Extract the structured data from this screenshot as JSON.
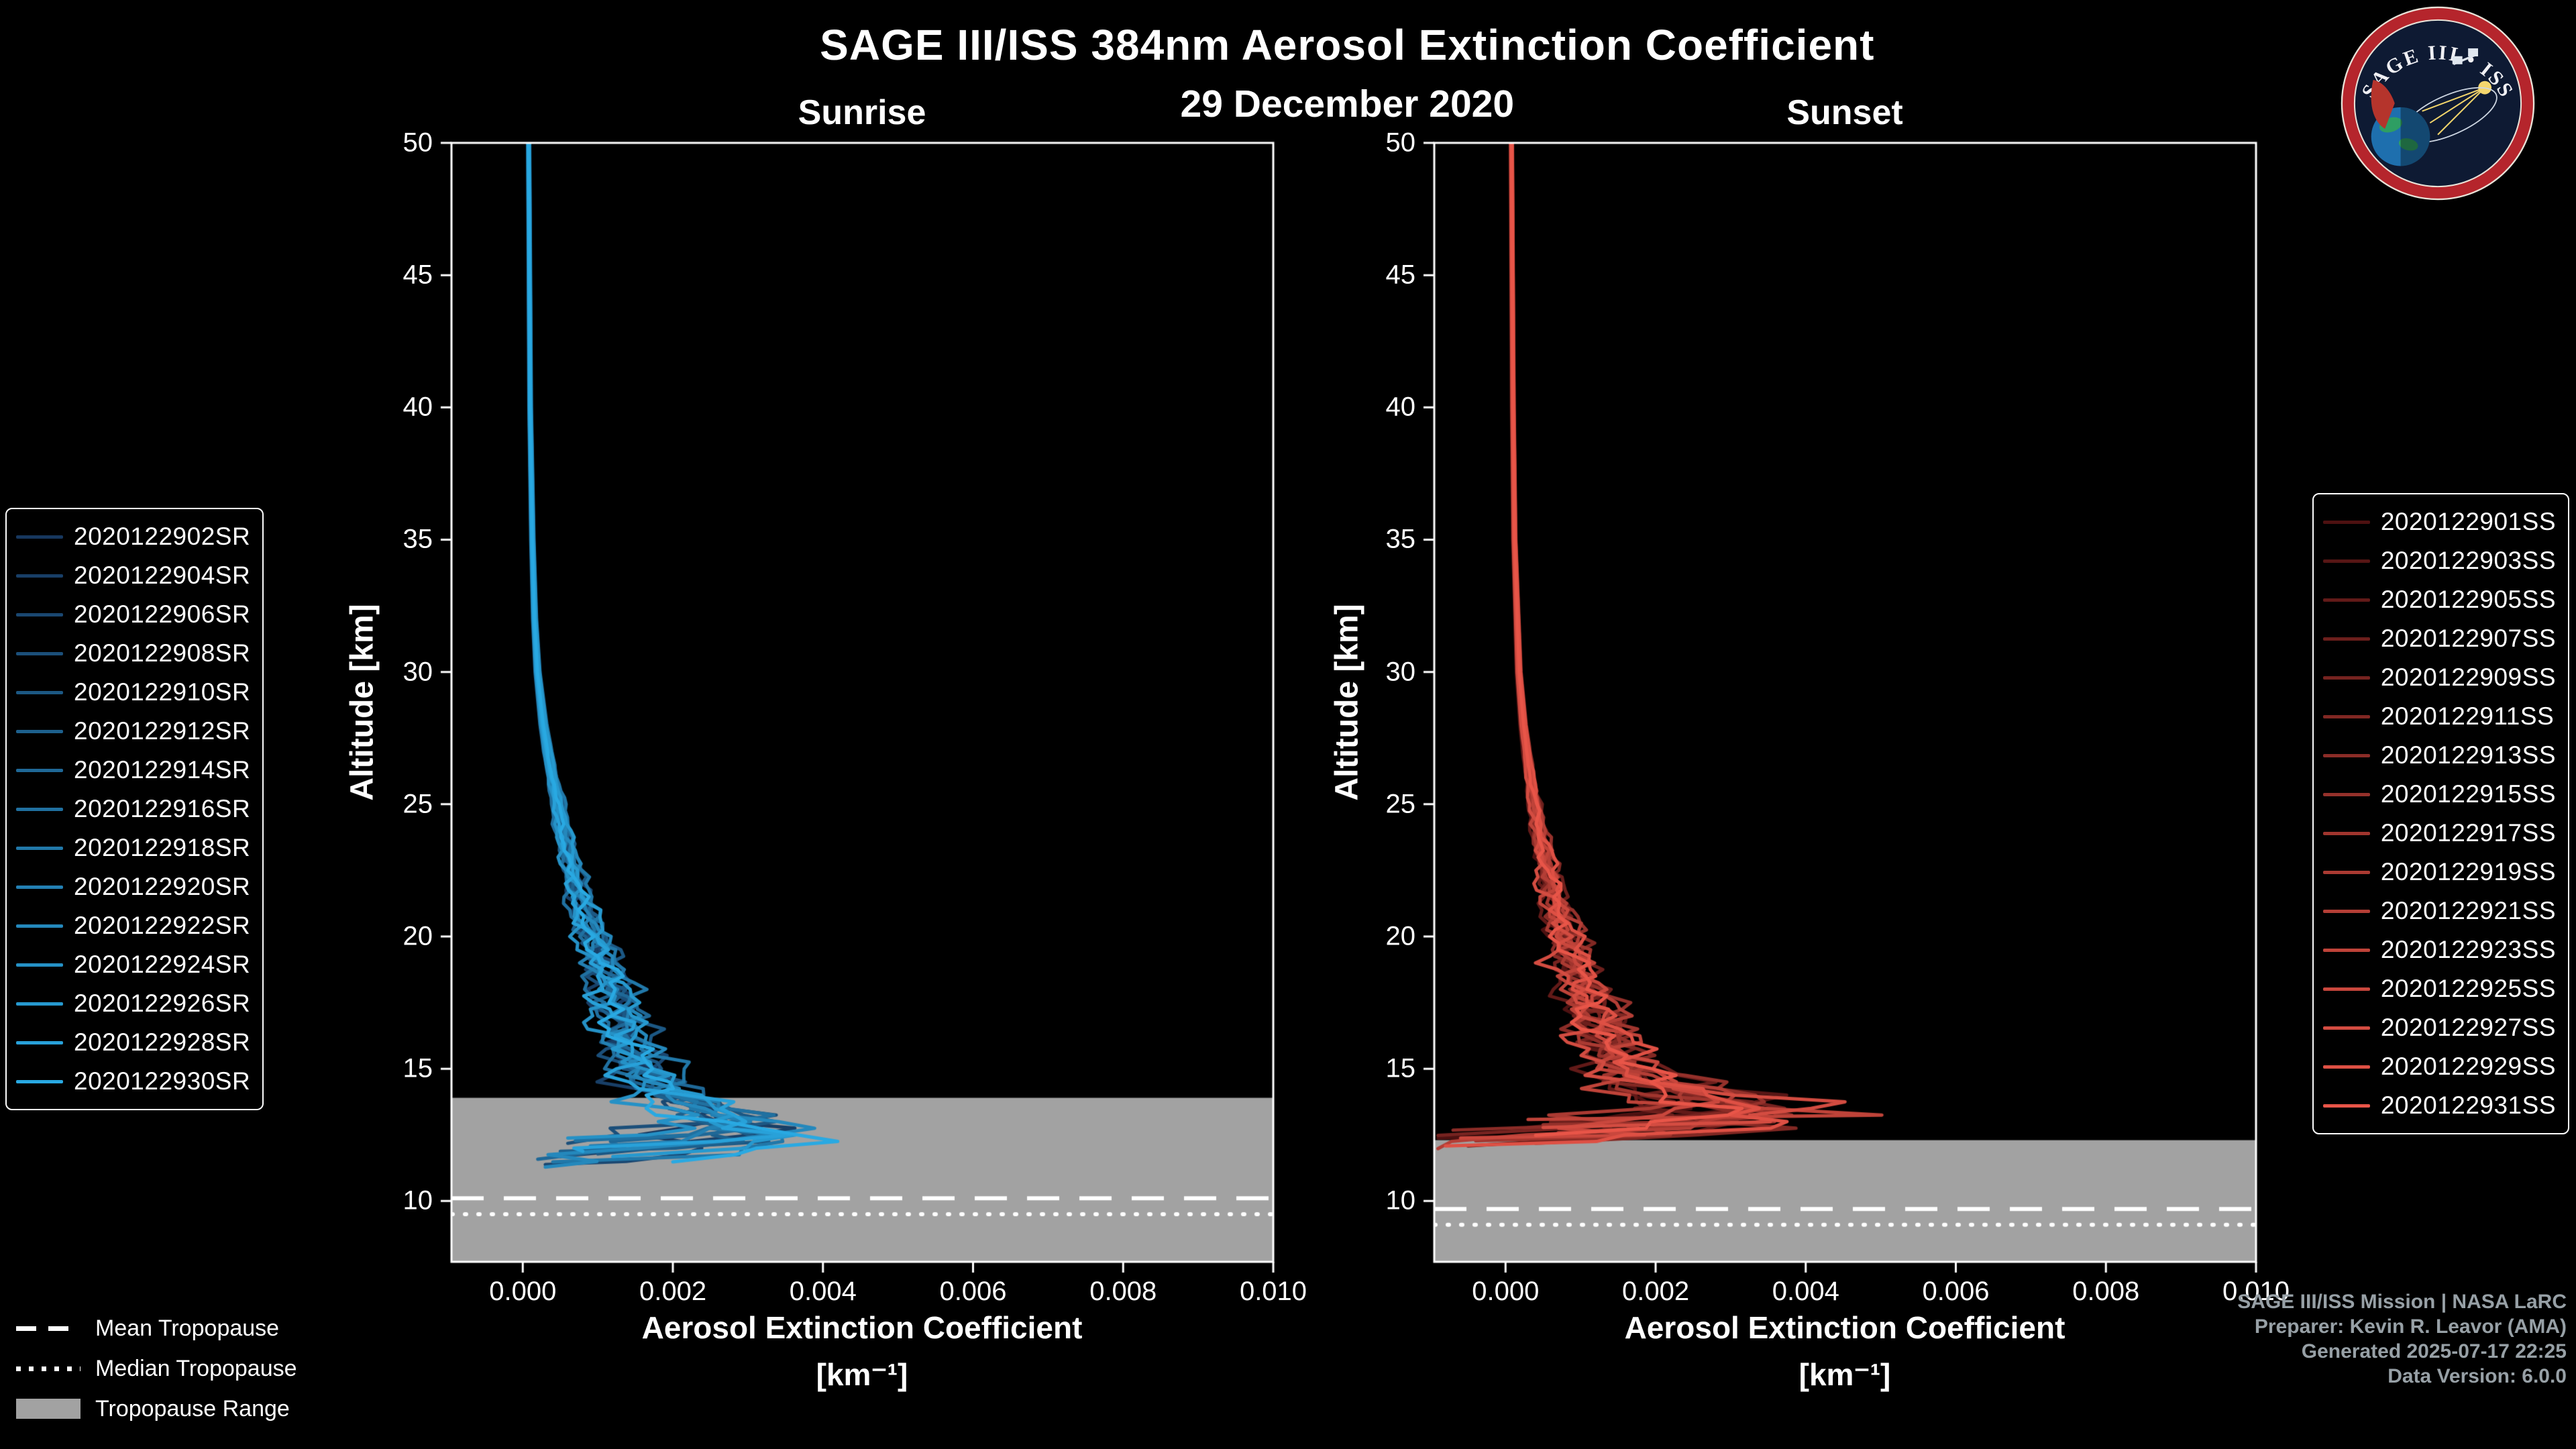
{
  "header": {
    "title": "SAGE III/ISS 384nm Aerosol Extinction Coefficient",
    "date": "29 December 2020"
  },
  "logo": {
    "title": "SAGE III • ISS"
  },
  "credits": {
    "color": "#97a0a6",
    "lines": [
      "SAGE III/ISS Mission | NASA LaRC",
      "Preparer: Kevin R. Leavor (AMA)",
      "Generated 2025-07-17 22:25",
      "Data Version: 6.0.0"
    ]
  },
  "tropopause_legend": {
    "mean_label": "Mean Tropopause",
    "median_label": "Median Tropopause",
    "range_label": "Tropopause Range"
  },
  "chart_data": [
    {
      "type": "line",
      "title": "Sunrise",
      "xlabel": "Aerosol Extinction Coefficient",
      "xlabel_units": "[km⁻¹]",
      "ylabel": "Altitude [km]",
      "xlim": [
        -0.00095,
        0.01
      ],
      "ylim": [
        7.7,
        50
      ],
      "xticks": [
        0.0,
        0.002,
        0.004,
        0.006,
        0.008,
        0.01
      ],
      "xtick_labels": [
        "0.000",
        "0.002",
        "0.004",
        "0.006",
        "0.008",
        "0.010"
      ],
      "yticks": [
        10,
        15,
        20,
        25,
        30,
        35,
        40,
        45,
        50
      ],
      "ytick_labels": [
        "10",
        "15",
        "20",
        "25",
        "30",
        "35",
        "40",
        "45",
        "50"
      ],
      "grid": false,
      "legend_position": "left",
      "tropopause": {
        "mean_km": 10.1,
        "median_km": 9.5,
        "range_top_km": 13.9,
        "range_color": "#a2a2a2",
        "line_color": "#ffffff"
      },
      "base_profile": [
        [
          50,
          8e-05
        ],
        [
          45,
          9e-05
        ],
        [
          40,
          0.0001
        ],
        [
          35,
          0.00013
        ],
        [
          32,
          0.00016
        ],
        [
          30,
          0.0002
        ],
        [
          28,
          0.00028
        ],
        [
          26,
          0.0004
        ],
        [
          24,
          0.00055
        ],
        [
          22,
          0.0007
        ],
        [
          20,
          0.00095
        ],
        [
          19,
          0.00105
        ],
        [
          18,
          0.0012
        ],
        [
          17,
          0.0013
        ],
        [
          16,
          0.0014
        ],
        [
          15,
          0.0016
        ],
        [
          14,
          0.0019
        ],
        [
          13.5,
          0.0021
        ],
        [
          13,
          0.0023
        ],
        [
          12.5,
          0.0023
        ],
        [
          12,
          0.0016
        ],
        [
          11.5,
          0.0008
        ],
        [
          11,
          0.0004
        ]
      ],
      "series": [
        {
          "label": "2020122902SR",
          "color": "#17375e",
          "scale": 1.0,
          "amp": 0.0005,
          "peak_alt": 12.8,
          "peak_amp": 0.0004,
          "bottom_alt": 11.8,
          "bottom_ext": 0.0005,
          "seed": 0
        },
        {
          "label": "2020122904SR",
          "color": "#183f67",
          "scale": 0.88,
          "amp": 0.0006,
          "peak_alt": 13.1,
          "peak_amp": 0.0006,
          "bottom_alt": 12.1,
          "bottom_ext": 0.0008,
          "seed": 1
        },
        {
          "label": "2020122906SR",
          "color": "#1a4771",
          "scale": 1.1,
          "amp": 0.00045,
          "peak_alt": 12.5,
          "peak_amp": 0.0005,
          "bottom_alt": 11.5,
          "bottom_ext": 0.0003,
          "seed": 2
        },
        {
          "label": "2020122908SR",
          "color": "#1b4f7a",
          "scale": 0.95,
          "amp": 0.00065,
          "peak_alt": 13.4,
          "peak_amp": 0.0007,
          "bottom_alt": 12.3,
          "bottom_ext": 0.0006,
          "seed": 3
        },
        {
          "label": "2020122910SR",
          "color": "#1c5884",
          "scale": 1.12,
          "amp": 0.00055,
          "peak_alt": 12.9,
          "peak_amp": 0.0003,
          "bottom_alt": 11.9,
          "bottom_ext": 0.001,
          "seed": 4
        },
        {
          "label": "2020122912SR",
          "color": "#1d608d",
          "scale": 0.9,
          "amp": 0.0005,
          "peak_alt": 13.2,
          "peak_amp": 0.0008,
          "bottom_alt": 12.0,
          "bottom_ext": 0.0005,
          "seed": 5
        },
        {
          "label": "2020122914SR",
          "color": "#1f6897",
          "scale": 1.05,
          "amp": 0.0006,
          "peak_alt": 12.4,
          "peak_amp": 0.0006,
          "bottom_alt": 11.7,
          "bottom_ext": 0.0002,
          "seed": 6
        },
        {
          "label": "2020122916SR",
          "color": "#2070a0",
          "scale": 0.82,
          "amp": 0.00045,
          "peak_alt": 13.6,
          "peak_amp": 0.0009,
          "bottom_alt": 12.4,
          "bottom_ext": 0.0007,
          "seed": 7
        },
        {
          "label": "2020122918SR",
          "color": "#2178a9",
          "scale": 1.15,
          "amp": 0.0006,
          "peak_alt": 12.7,
          "peak_amp": 0.0005,
          "bottom_alt": 11.6,
          "bottom_ext": 0.0004,
          "seed": 8
        },
        {
          "label": "2020122920SR",
          "color": "#2380b3",
          "scale": 0.95,
          "amp": 0.0005,
          "peak_alt": 13.0,
          "peak_amp": 0.001,
          "bottom_alt": 12.2,
          "bottom_ext": 0.0009,
          "seed": 9
        },
        {
          "label": "2020122922SR",
          "color": "#2488bc",
          "scale": 1.08,
          "amp": 0.00055,
          "peak_alt": 12.6,
          "peak_amp": 0.0007,
          "bottom_alt": 11.4,
          "bottom_ext": 0.0003,
          "seed": 10
        },
        {
          "label": "2020122924SR",
          "color": "#2591c6",
          "scale": 0.86,
          "amp": 0.00065,
          "peak_alt": 13.3,
          "peak_amp": 0.0005,
          "bottom_alt": 12.5,
          "bottom_ext": 0.0006,
          "seed": 11
        },
        {
          "label": "2020122926SR",
          "color": "#2699cf",
          "scale": 1.1,
          "amp": 0.0005,
          "peak_alt": 12.3,
          "peak_amp": 0.0016,
          "bottom_alt": 11.8,
          "bottom_ext": 0.0012,
          "seed": 12
        },
        {
          "label": "2020122928SR",
          "color": "#28a1d9",
          "scale": 0.92,
          "amp": 0.0006,
          "peak_alt": 13.5,
          "peak_amp": 0.0008,
          "bottom_alt": 12.0,
          "bottom_ext": 0.0008,
          "seed": 13
        },
        {
          "label": "2020122930SR",
          "color": "#29a9e2",
          "scale": 0.98,
          "amp": 0.00055,
          "peak_alt": 12.2,
          "peak_amp": 0.0018,
          "bottom_alt": 11.6,
          "bottom_ext": 0.002,
          "seed": 14
        }
      ]
    },
    {
      "type": "line",
      "title": "Sunset",
      "xlabel": "Aerosol Extinction Coefficient",
      "xlabel_units": "[km⁻¹]",
      "ylabel": "Altitude [km]",
      "xlim": [
        -0.00095,
        0.01
      ],
      "ylim": [
        7.7,
        50
      ],
      "xticks": [
        0.0,
        0.002,
        0.004,
        0.006,
        0.008,
        0.01
      ],
      "xtick_labels": [
        "0.000",
        "0.002",
        "0.004",
        "0.006",
        "0.008",
        "0.010"
      ],
      "yticks": [
        10,
        15,
        20,
        25,
        30,
        35,
        40,
        45,
        50
      ],
      "ytick_labels": [
        "10",
        "15",
        "20",
        "25",
        "30",
        "35",
        "40",
        "45",
        "50"
      ],
      "grid": false,
      "legend_position": "right",
      "tropopause": {
        "mean_km": 9.7,
        "median_km": 9.1,
        "range_top_km": 12.3,
        "range_color": "#a2a2a2",
        "line_color": "#ffffff"
      },
      "base_profile": [
        [
          50,
          8e-05
        ],
        [
          45,
          9e-05
        ],
        [
          40,
          0.0001
        ],
        [
          35,
          0.00012
        ],
        [
          30,
          0.00018
        ],
        [
          28,
          0.00024
        ],
        [
          26,
          0.00033
        ],
        [
          24,
          0.00045
        ],
        [
          22,
          0.0006
        ],
        [
          20,
          0.0008
        ],
        [
          19,
          0.0009
        ],
        [
          18,
          0.00105
        ],
        [
          17,
          0.0012
        ],
        [
          16,
          0.00135
        ],
        [
          15,
          0.0016
        ],
        [
          14.5,
          0.0018
        ],
        [
          14,
          0.0021
        ],
        [
          13.5,
          0.0023
        ],
        [
          13,
          0.0021
        ],
        [
          12.5,
          0.0013
        ],
        [
          12,
          0.0006
        ]
      ],
      "series": [
        {
          "label": "2020122901SS",
          "color": "#4d1111",
          "scale": 0.9,
          "amp": 0.0006,
          "peak_alt": 13.3,
          "peak_amp": 0.0003,
          "bottom_alt": 12.5,
          "bottom_ext": -0.0009,
          "seed": 20
        },
        {
          "label": "2020122903SS",
          "color": "#571615",
          "scale": 1.05,
          "amp": 0.0007,
          "peak_alt": 13.8,
          "peak_amp": 0.0005,
          "bottom_alt": 12.9,
          "bottom_ext": 0.0003,
          "seed": 21
        },
        {
          "label": "2020122905SS",
          "color": "#621a18",
          "scale": 0.8,
          "amp": 0.00055,
          "peak_alt": 13.0,
          "peak_amp": 0.0006,
          "bottom_alt": 12.2,
          "bottom_ext": -0.0005,
          "seed": 22
        },
        {
          "label": "2020122907SS",
          "color": "#6c1f1c",
          "scale": 1.12,
          "amp": 0.00075,
          "peak_alt": 14.0,
          "peak_amp": 0.0004,
          "bottom_alt": 13.1,
          "bottom_ext": 0.0006,
          "seed": 23
        },
        {
          "label": "2020122909SS",
          "color": "#762320",
          "scale": 0.95,
          "amp": 0.0006,
          "peak_alt": 13.4,
          "peak_amp": 0.0007,
          "bottom_alt": 12.6,
          "bottom_ext": -0.0009,
          "seed": 24
        },
        {
          "label": "2020122911SS",
          "color": "#812823",
          "scale": 1.08,
          "amp": 0.0008,
          "peak_alt": 13.6,
          "peak_amp": 0.0005,
          "bottom_alt": 12.3,
          "bottom_ext": 0.0004,
          "seed": 25
        },
        {
          "label": "2020122913SS",
          "color": "#8b2c27",
          "scale": 0.88,
          "amp": 0.00055,
          "peak_alt": 13.4,
          "peak_amp": 0.0018,
          "bottom_alt": 12.8,
          "bottom_ext": -0.0007,
          "seed": 26
        },
        {
          "label": "2020122915SS",
          "color": "#95312b",
          "scale": 1.15,
          "amp": 0.0007,
          "peak_alt": 14.1,
          "peak_amp": 0.0006,
          "bottom_alt": 13.0,
          "bottom_ext": 0.0005,
          "seed": 27
        },
        {
          "label": "2020122917SS",
          "color": "#a0352e",
          "scale": 1.0,
          "amp": 0.00075,
          "peak_alt": 13.3,
          "peak_amp": 0.0008,
          "bottom_alt": 12.4,
          "bottom_ext": -0.0004,
          "seed": 28
        },
        {
          "label": "2020122919SS",
          "color": "#aa3a32",
          "scale": 0.92,
          "amp": 0.0006,
          "peak_alt": 13.9,
          "peak_amp": 0.0005,
          "bottom_alt": 12.7,
          "bottom_ext": 0.0007,
          "seed": 29
        },
        {
          "label": "2020122921SS",
          "color": "#b43e36",
          "scale": 1.1,
          "amp": 0.0007,
          "peak_alt": 13.5,
          "peak_amp": 0.0007,
          "bottom_alt": 12.1,
          "bottom_ext": -0.0009,
          "seed": 30
        },
        {
          "label": "2020122923SS",
          "color": "#bf4339",
          "scale": 0.96,
          "amp": 0.00085,
          "peak_alt": 13.2,
          "peak_amp": 0.0009,
          "bottom_alt": 13.2,
          "bottom_ext": 0.0003,
          "seed": 31
        },
        {
          "label": "2020122925SS",
          "color": "#c9473d",
          "scale": 1.04,
          "amp": 0.00055,
          "peak_alt": 14.0,
          "peak_amp": 0.0006,
          "bottom_alt": 12.5,
          "bottom_ext": -0.0006,
          "seed": 32
        },
        {
          "label": "2020122927SS",
          "color": "#d34c41",
          "scale": 0.86,
          "amp": 0.0008,
          "peak_alt": 13.3,
          "peak_amp": 0.0022,
          "bottom_alt": 12.9,
          "bottom_ext": 0.0005,
          "seed": 33
        },
        {
          "label": "2020122929SS",
          "color": "#de5044",
          "scale": 1.12,
          "amp": 0.00065,
          "peak_alt": 13.7,
          "peak_amp": 0.0008,
          "bottom_alt": 12.2,
          "bottom_ext": -0.0008,
          "seed": 34
        },
        {
          "label": "2020122931SS",
          "color": "#e85548",
          "scale": 1.0,
          "amp": 0.0007,
          "peak_alt": 13.4,
          "peak_amp": 0.001,
          "bottom_alt": 12.6,
          "bottom_ext": 0.0004,
          "seed": 35
        }
      ]
    }
  ]
}
